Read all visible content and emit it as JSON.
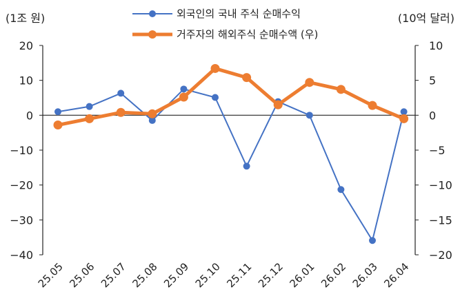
{
  "chart_data": {
    "type": "line",
    "categories": [
      "25.05",
      "25.06",
      "25.07",
      "25.08",
      "25.09",
      "25.10",
      "25.11",
      "25.12",
      "26.01",
      "26.02",
      "26.03",
      "26.04"
    ],
    "series": [
      {
        "name": "외국인의 국내 주식 순매수익",
        "axis": "left",
        "color": "#4472C4",
        "values": [
          1,
          2.5,
          6.3,
          -1.5,
          7.5,
          5.1,
          -14.6,
          3.9,
          0,
          -21.3,
          -35.9,
          1.0
        ]
      },
      {
        "name": "거주자의 해외주식 순매수액 (우)",
        "axis": "right",
        "color": "#ED7D31",
        "values": [
          -1.4,
          -0.5,
          0.4,
          0.2,
          2.6,
          6.7,
          5.4,
          1.5,
          4.7,
          3.7,
          1.4,
          -0.5
        ]
      }
    ],
    "left_axis": {
      "unit": "(1조 원)",
      "ylim": [
        -40,
        20
      ],
      "ticks": [
        20,
        10,
        0,
        -10,
        -20,
        -30,
        -40
      ],
      "tick_labels": [
        "20",
        "10",
        "0",
        "−10",
        "−20",
        "−30",
        "−40"
      ]
    },
    "right_axis": {
      "unit": "(10억 달러)",
      "ylim": [
        -20,
        10
      ],
      "ticks": [
        10,
        5,
        0,
        -5,
        -10,
        -15,
        -20
      ],
      "tick_labels": [
        "10",
        "5",
        "0",
        "−5",
        "−10",
        "−15",
        "−20"
      ]
    },
    "grid": false,
    "legend_position": "top-center"
  }
}
